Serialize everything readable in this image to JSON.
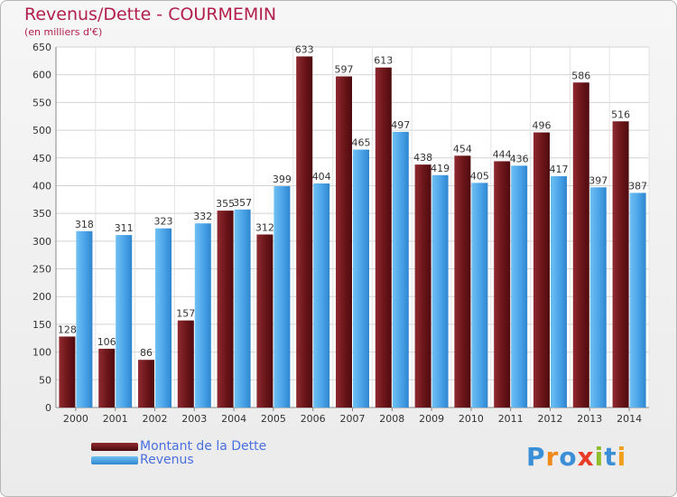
{
  "header": {
    "title": "Revenus/Dette - COURMEMIN",
    "subtitle": "(en milliers d'€)"
  },
  "legend": {
    "items": [
      {
        "label": "Montant de la Dette",
        "color": "#6b1519"
      },
      {
        "label": "Revenus",
        "color": "#4aa3e8"
      }
    ]
  },
  "logo": {
    "letters": [
      "P",
      "r",
      "o",
      "x",
      "i",
      "t",
      "i"
    ],
    "colors": [
      "#3b8fd6",
      "#f08a1c",
      "#3b8fd6",
      "#e83c27",
      "#8fbe2a",
      "#3b8fd6",
      "#f0a01c"
    ]
  },
  "chart_data": {
    "type": "bar",
    "title": "Revenus/Dette - COURMEMIN",
    "subtitle": "(en milliers d'€)",
    "categories": [
      "2000",
      "2001",
      "2002",
      "2003",
      "2004",
      "2005",
      "2006",
      "2007",
      "2008",
      "2009",
      "2010",
      "2011",
      "2012",
      "2013",
      "2014"
    ],
    "series": [
      {
        "name": "Montant de la Dette",
        "color": "#6b1519",
        "values": [
          128,
          106,
          86,
          157,
          355,
          312,
          633,
          597,
          613,
          438,
          454,
          444,
          496,
          586,
          516
        ]
      },
      {
        "name": "Revenus",
        "color": "#4aa3e8",
        "values": [
          318,
          311,
          323,
          332,
          357,
          399,
          404,
          465,
          497,
          419,
          405,
          436,
          417,
          397,
          387
        ]
      }
    ],
    "ylim": [
      0,
      650
    ],
    "yticks": [
      0,
      50,
      100,
      150,
      200,
      250,
      300,
      350,
      400,
      450,
      500,
      550,
      600,
      650
    ],
    "grid": true,
    "legend_position": "bottom-left"
  }
}
